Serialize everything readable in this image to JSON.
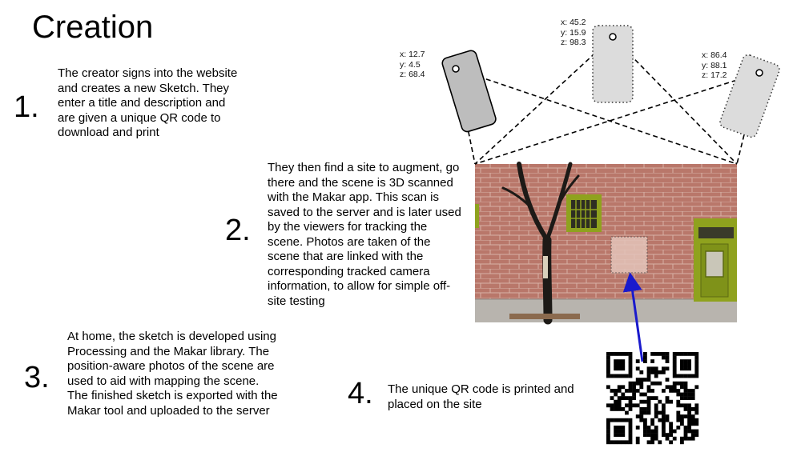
{
  "title": "Creation",
  "steps": [
    {
      "number": "1.",
      "text": "The creator signs into the website and creates a new Sketch. They enter a title and description and are given a unique QR code to download and print"
    },
    {
      "number": "2.",
      "text": "They then find a site to augment, go there and the scene is 3D scanned with the Makar app. This scan is saved to the server and is later used by the viewers for tracking the scene. Photos are taken of the scene that are linked with the corresponding tracked camera information, to allow for simple off-site testing"
    },
    {
      "number": "3.",
      "text": "At home, the sketch is developed using Processing and the Makar library. The position-aware photos of the scene are used to aid with mapping the scene. The finished sketch is exported with the Makar tool and uploaded to the server"
    },
    {
      "number": "4.",
      "text": "The unique QR code is printed and placed on the site"
    }
  ],
  "cameras": [
    {
      "x": "x: 12.7",
      "y": "y: 4.5",
      "z": "z: 68.4"
    },
    {
      "x": "x: 45.2",
      "y": "y: 15.9",
      "z": "z: 98.3"
    },
    {
      "x": "x: 86.4",
      "y": "y: 88.1",
      "z": "z: 17.2"
    }
  ],
  "colors": {
    "arrow": "#1a1acc",
    "camera_fill": "#bdbdbd",
    "camera_light": "#dcdcdc",
    "door": "#8fa21e"
  }
}
